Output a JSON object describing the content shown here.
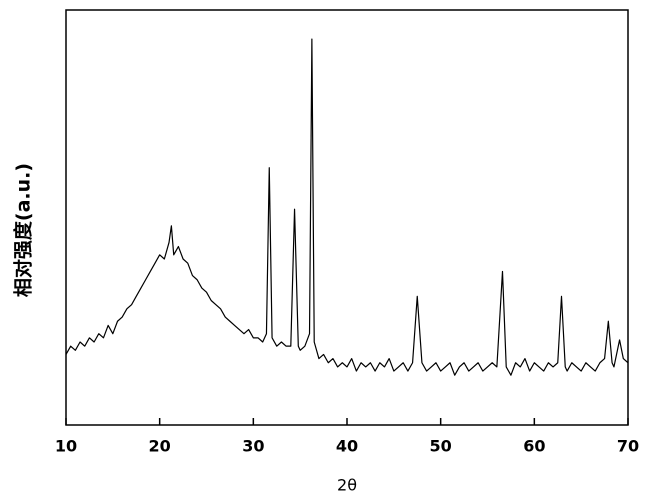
{
  "chart_data": {
    "type": "line",
    "xlabel": "2θ",
    "ylabel": "相对强度(a.u.)",
    "color": "#000000",
    "x": [
      10,
      10.5,
      11,
      11.5,
      12,
      12.5,
      13,
      13.5,
      14,
      14.5,
      15,
      15.5,
      16,
      16.5,
      17,
      17.5,
      18,
      18.5,
      19,
      19.5,
      20,
      20.5,
      21,
      21.25,
      21.5,
      22,
      22.5,
      23,
      23.5,
      24,
      24.5,
      25,
      25.5,
      26,
      26.5,
      27,
      27.5,
      28,
      28.5,
      29,
      29.5,
      30,
      30.5,
      31,
      31.4,
      31.7,
      32,
      32.5,
      33,
      33.5,
      34,
      34.4,
      34.8,
      35,
      35.5,
      36,
      36.25,
      36.5,
      37,
      37.5,
      38,
      38.5,
      39,
      39.5,
      40,
      40.5,
      41,
      41.5,
      42,
      42.5,
      43,
      43.5,
      44,
      44.5,
      45,
      45.5,
      46,
      46.5,
      47,
      47.5,
      48,
      48.5,
      49,
      49.5,
      50,
      50.5,
      51,
      51.5,
      52,
      52.5,
      53,
      53.5,
      54,
      54.5,
      55,
      55.5,
      56,
      56.6,
      57,
      57.5,
      58,
      58.5,
      59,
      59.5,
      60,
      60.5,
      61,
      61.5,
      62,
      62.5,
      62.9,
      63.3,
      63.5,
      64,
      64.5,
      65,
      65.5,
      66,
      66.5,
      67,
      67.5,
      67.9,
      68.3,
      68.5,
      69.1,
      69.5,
      70
    ],
    "values": [
      17,
      19,
      18,
      20,
      19,
      21,
      20,
      22,
      21,
      24,
      22,
      25,
      26,
      28,
      29,
      31,
      33,
      35,
      37,
      39,
      41,
      40,
      44,
      48,
      41,
      43,
      40,
      39,
      36,
      35,
      33,
      32,
      30,
      29,
      28,
      26,
      25,
      24,
      23,
      22,
      23,
      21,
      21,
      20,
      22,
      62,
      21,
      19,
      20,
      19,
      19,
      52,
      19,
      18,
      19,
      22,
      93,
      20,
      16,
      17,
      15,
      16,
      14,
      15,
      14,
      16,
      13,
      15,
      14,
      15,
      13,
      15,
      14,
      16,
      13,
      14,
      15,
      13,
      15,
      31,
      15,
      13,
      14,
      15,
      13,
      14,
      15,
      12,
      14,
      15,
      13,
      14,
      15,
      13,
      14,
      15,
      14,
      37,
      14,
      12,
      15,
      14,
      16,
      13,
      15,
      14,
      13,
      15,
      14,
      15,
      31,
      14,
      13,
      15,
      14,
      13,
      15,
      14,
      13,
      15,
      16,
      25,
      15,
      14,
      20.5,
      16,
      15
    ],
    "xlim": [
      10,
      70
    ],
    "xticks": [
      10,
      20,
      30,
      40,
      50,
      60,
      70
    ],
    "ylim": [
      0,
      100
    ]
  }
}
